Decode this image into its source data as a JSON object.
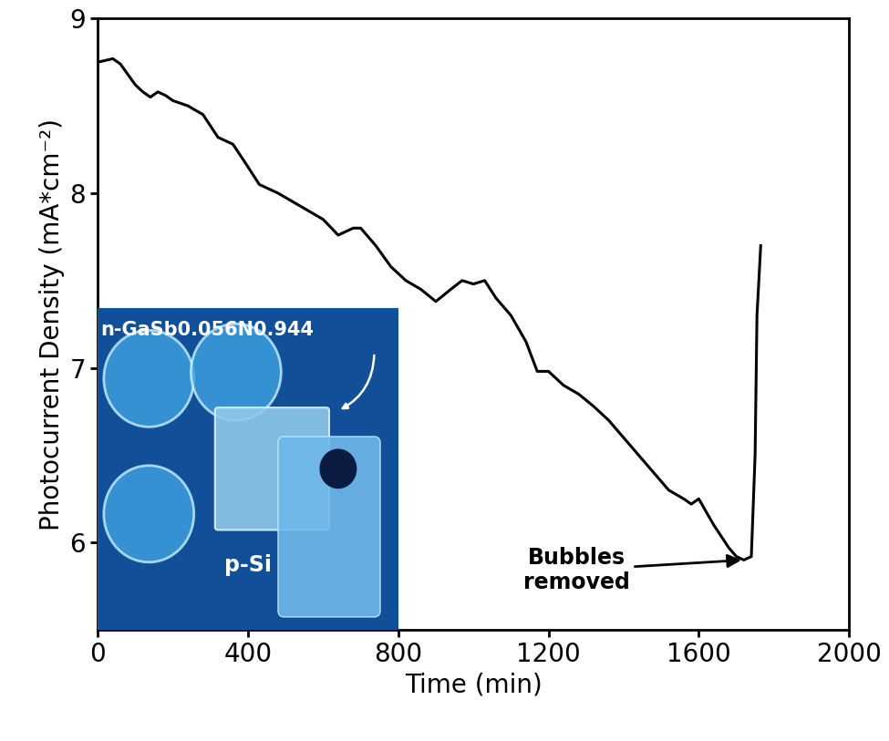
{
  "chart_data": {
    "type": "line",
    "x_label": "Time (min)",
    "y_label": "Photocurrent Density (mA*cm⁻²)",
    "x": [
      0,
      20,
      40,
      60,
      80,
      100,
      120,
      140,
      160,
      180,
      200,
      240,
      280,
      320,
      360,
      400,
      430,
      480,
      520,
      560,
      600,
      640,
      680,
      700,
      740,
      780,
      820,
      860,
      900,
      940,
      970,
      1000,
      1030,
      1060,
      1100,
      1140,
      1170,
      1200,
      1240,
      1280,
      1320,
      1360,
      1400,
      1440,
      1480,
      1520,
      1560,
      1580,
      1600,
      1640,
      1680,
      1700,
      1720,
      1740,
      1750,
      1755,
      1765
    ],
    "series": [
      {
        "name": "Photocurrent Density",
        "color": "#000000",
        "line_style": "solid",
        "values": [
          8.75,
          8.76,
          8.77,
          8.74,
          8.68,
          8.62,
          8.58,
          8.55,
          8.58,
          8.56,
          8.53,
          8.5,
          8.45,
          8.32,
          8.28,
          8.15,
          8.05,
          8.0,
          7.95,
          7.9,
          7.85,
          7.76,
          7.8,
          7.8,
          7.7,
          7.58,
          7.5,
          7.45,
          7.38,
          7.45,
          7.5,
          7.48,
          7.5,
          7.4,
          7.3,
          7.15,
          6.98,
          6.98,
          6.9,
          6.85,
          6.78,
          6.7,
          6.6,
          6.5,
          6.4,
          6.3,
          6.25,
          6.22,
          6.25,
          6.1,
          5.97,
          5.92,
          5.9,
          5.92,
          6.5,
          7.3,
          7.7
        ]
      }
    ],
    "xlim": [
      0,
      2000
    ],
    "xticks": [
      0,
      400,
      800,
      1200,
      1600,
      2000
    ],
    "ylim": [
      5.5,
      9
    ],
    "yticks": [
      6,
      7,
      8,
      9
    ],
    "annotations": [
      {
        "text": "Bubbles\nremoved",
        "x": 1720,
        "y": 5.9
      }
    ],
    "inset_labels": [
      "n-GaSb0.056N0.944",
      "p-Si"
    ]
  }
}
